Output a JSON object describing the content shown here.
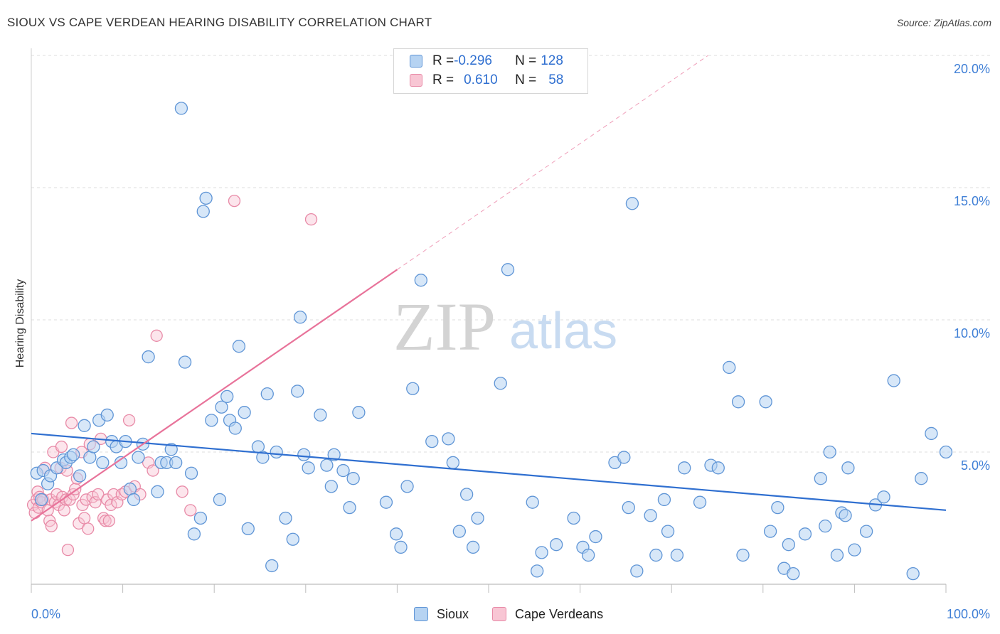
{
  "title": "SIOUX VS CAPE VERDEAN HEARING DISABILITY CORRELATION CHART",
  "source": "Source: ZipAtlas.com",
  "watermark": {
    "zip": "ZIP",
    "atlas": "atlas"
  },
  "legend": {
    "rows": [
      {
        "r_label": "R = ",
        "r_value": "-0.296",
        "n_label": "N = ",
        "n_value": "128"
      },
      {
        "r_label": "R = ",
        "r_value": "0.610",
        "n_label": "N = ",
        "n_value": "58"
      }
    ],
    "bottom": [
      "Sioux",
      "Cape Verdeans"
    ]
  },
  "colors": {
    "sioux_fill": "#b6d3f2",
    "sioux_stroke": "#5f95d6",
    "sioux_line": "#2f6fd0",
    "cv_fill": "#f8c6d4",
    "cv_stroke": "#e88aa7",
    "cv_line": "#e8739a",
    "grid": "#dcdcdc",
    "tick_label": "#3f7fd6"
  },
  "chart_data": {
    "type": "scatter",
    "title": "SIOUX VS CAPE VERDEAN HEARING DISABILITY CORRELATION CHART",
    "xlabel": "",
    "ylabel": "Hearing Disability",
    "xlim": [
      0,
      100
    ],
    "ylim": [
      0,
      20
    ],
    "x_tick_labels": [
      "0.0%",
      "100.0%"
    ],
    "y_ticks": [
      5,
      10,
      15,
      20
    ],
    "y_tick_labels": [
      "5.0%",
      "10.0%",
      "15.0%",
      "20.0%"
    ],
    "grid": true,
    "series": [
      {
        "name": "Sioux",
        "R": -0.296,
        "N": 128,
        "trend": {
          "x": [
            0,
            100
          ],
          "y": [
            5.7,
            2.8
          ]
        },
        "points": [
          [
            0.6,
            4.2
          ],
          [
            1.1,
            3.2
          ],
          [
            1.3,
            4.3
          ],
          [
            1.8,
            3.8
          ],
          [
            2.1,
            4.1
          ],
          [
            2.8,
            4.4
          ],
          [
            3.5,
            4.7
          ],
          [
            3.8,
            4.6
          ],
          [
            4.3,
            4.8
          ],
          [
            4.6,
            4.9
          ],
          [
            5.3,
            4.1
          ],
          [
            5.8,
            6.0
          ],
          [
            6.4,
            4.8
          ],
          [
            6.8,
            5.2
          ],
          [
            7.4,
            6.2
          ],
          [
            7.8,
            4.6
          ],
          [
            8.3,
            6.4
          ],
          [
            8.8,
            5.4
          ],
          [
            9.3,
            5.2
          ],
          [
            9.8,
            4.6
          ],
          [
            10.3,
            5.4
          ],
          [
            10.8,
            3.6
          ],
          [
            11.2,
            3.2
          ],
          [
            11.7,
            4.8
          ],
          [
            12.8,
            8.6
          ],
          [
            12.2,
            5.3
          ],
          [
            13.8,
            3.5
          ],
          [
            14.2,
            4.6
          ],
          [
            14.8,
            4.6
          ],
          [
            15.3,
            5.1
          ],
          [
            15.8,
            4.6
          ],
          [
            16.4,
            18.0
          ],
          [
            16.8,
            8.4
          ],
          [
            17.5,
            4.2
          ],
          [
            17.8,
            1.9
          ],
          [
            18.5,
            2.5
          ],
          [
            18.8,
            14.1
          ],
          [
            19.1,
            14.6
          ],
          [
            19.7,
            6.2
          ],
          [
            20.6,
            3.2
          ],
          [
            20.8,
            6.7
          ],
          [
            21.4,
            7.1
          ],
          [
            21.7,
            6.2
          ],
          [
            22.3,
            5.9
          ],
          [
            22.7,
            9.0
          ],
          [
            23.3,
            6.5
          ],
          [
            23.7,
            2.1
          ],
          [
            24.8,
            5.2
          ],
          [
            25.3,
            4.8
          ],
          [
            25.8,
            7.2
          ],
          [
            26.3,
            0.7
          ],
          [
            26.8,
            5.0
          ],
          [
            27.8,
            2.5
          ],
          [
            28.6,
            1.7
          ],
          [
            29.1,
            7.3
          ],
          [
            29.4,
            10.1
          ],
          [
            29.8,
            4.9
          ],
          [
            30.3,
            4.4
          ],
          [
            31.6,
            6.4
          ],
          [
            32.3,
            4.5
          ],
          [
            32.8,
            3.7
          ],
          [
            33.1,
            4.9
          ],
          [
            34.1,
            4.3
          ],
          [
            34.8,
            2.9
          ],
          [
            35.2,
            4.0
          ],
          [
            35.8,
            6.5
          ],
          [
            38.8,
            3.1
          ],
          [
            39.9,
            1.9
          ],
          [
            40.4,
            1.4
          ],
          [
            41.1,
            3.7
          ],
          [
            41.7,
            7.4
          ],
          [
            42.6,
            11.5
          ],
          [
            43.8,
            5.4
          ],
          [
            45.6,
            5.5
          ],
          [
            46.1,
            4.6
          ],
          [
            46.8,
            2.0
          ],
          [
            47.6,
            3.4
          ],
          [
            48.3,
            1.4
          ],
          [
            48.8,
            2.5
          ],
          [
            52.1,
            11.9
          ],
          [
            51.3,
            7.6
          ],
          [
            55.3,
            0.5
          ],
          [
            55.8,
            1.2
          ],
          [
            54.8,
            3.1
          ],
          [
            57.4,
            1.5
          ],
          [
            59.3,
            2.5
          ],
          [
            60.3,
            1.4
          ],
          [
            60.9,
            1.1
          ],
          [
            61.7,
            1.8
          ],
          [
            63.8,
            4.6
          ],
          [
            64.8,
            4.8
          ],
          [
            65.7,
            14.4
          ],
          [
            66.2,
            0.5
          ],
          [
            65.3,
            2.9
          ],
          [
            67.7,
            2.6
          ],
          [
            68.3,
            1.1
          ],
          [
            69.6,
            2.0
          ],
          [
            69.2,
            3.2
          ],
          [
            70.6,
            1.1
          ],
          [
            71.4,
            4.4
          ],
          [
            73.1,
            3.1
          ],
          [
            74.3,
            4.5
          ],
          [
            75.1,
            4.4
          ],
          [
            76.3,
            8.2
          ],
          [
            77.3,
            6.9
          ],
          [
            77.8,
            1.1
          ],
          [
            80.3,
            6.9
          ],
          [
            80.8,
            2.0
          ],
          [
            81.6,
            2.9
          ],
          [
            82.3,
            0.6
          ],
          [
            83.3,
            0.4
          ],
          [
            82.8,
            1.5
          ],
          [
            84.6,
            1.9
          ],
          [
            86.3,
            4.0
          ],
          [
            86.8,
            2.2
          ],
          [
            87.3,
            5.0
          ],
          [
            88.1,
            1.1
          ],
          [
            88.6,
            2.7
          ],
          [
            89.0,
            2.6
          ],
          [
            89.3,
            4.4
          ],
          [
            90.0,
            1.3
          ],
          [
            91.3,
            2.0
          ],
          [
            92.3,
            3.0
          ],
          [
            93.2,
            3.3
          ],
          [
            94.3,
            7.7
          ],
          [
            96.4,
            0.4
          ],
          [
            97.3,
            4.0
          ],
          [
            98.4,
            5.7
          ],
          [
            100.0,
            5.0
          ]
        ]
      },
      {
        "name": "Cape Verdeans",
        "R": 0.61,
        "N": 58,
        "trend": {
          "x": [
            0,
            40
          ],
          "y": [
            2.4,
            11.9
          ]
        },
        "trend_extended": {
          "x": [
            40,
            74
          ],
          "y": [
            11.9,
            20.0
          ]
        },
        "points": [
          [
            0.2,
            3.0
          ],
          [
            0.4,
            2.7
          ],
          [
            0.6,
            3.2
          ],
          [
            0.7,
            3.5
          ],
          [
            0.8,
            2.9
          ],
          [
            0.9,
            3.3
          ],
          [
            1.1,
            3.1
          ],
          [
            1.3,
            3.2
          ],
          [
            1.5,
            4.4
          ],
          [
            1.8,
            2.8
          ],
          [
            2.0,
            2.4
          ],
          [
            2.1,
            3.2
          ],
          [
            2.2,
            2.2
          ],
          [
            2.4,
            5.0
          ],
          [
            2.6,
            3.1
          ],
          [
            2.8,
            3.4
          ],
          [
            3.0,
            3.0
          ],
          [
            3.2,
            4.4
          ],
          [
            3.3,
            5.2
          ],
          [
            3.4,
            3.3
          ],
          [
            3.6,
            2.8
          ],
          [
            3.8,
            3.2
          ],
          [
            3.9,
            4.3
          ],
          [
            4.0,
            1.3
          ],
          [
            4.2,
            3.2
          ],
          [
            4.4,
            6.1
          ],
          [
            4.6,
            3.4
          ],
          [
            4.8,
            3.6
          ],
          [
            5.0,
            4.0
          ],
          [
            5.2,
            2.3
          ],
          [
            5.5,
            5.0
          ],
          [
            5.6,
            3.0
          ],
          [
            5.8,
            2.5
          ],
          [
            6.0,
            3.2
          ],
          [
            6.2,
            2.1
          ],
          [
            6.4,
            5.3
          ],
          [
            6.7,
            3.3
          ],
          [
            7.0,
            3.1
          ],
          [
            7.3,
            3.4
          ],
          [
            7.6,
            5.5
          ],
          [
            7.9,
            2.5
          ],
          [
            8.1,
            2.4
          ],
          [
            8.3,
            3.2
          ],
          [
            8.5,
            2.4
          ],
          [
            8.7,
            3.0
          ],
          [
            9.0,
            3.4
          ],
          [
            9.4,
            3.1
          ],
          [
            9.9,
            3.4
          ],
          [
            10.3,
            3.5
          ],
          [
            10.7,
            6.2
          ],
          [
            11.3,
            3.7
          ],
          [
            11.9,
            3.4
          ],
          [
            12.8,
            4.6
          ],
          [
            13.3,
            4.3
          ],
          [
            13.7,
            9.4
          ],
          [
            16.5,
            3.5
          ],
          [
            17.4,
            2.8
          ],
          [
            22.2,
            14.5
          ],
          [
            30.6,
            13.8
          ]
        ]
      }
    ]
  }
}
